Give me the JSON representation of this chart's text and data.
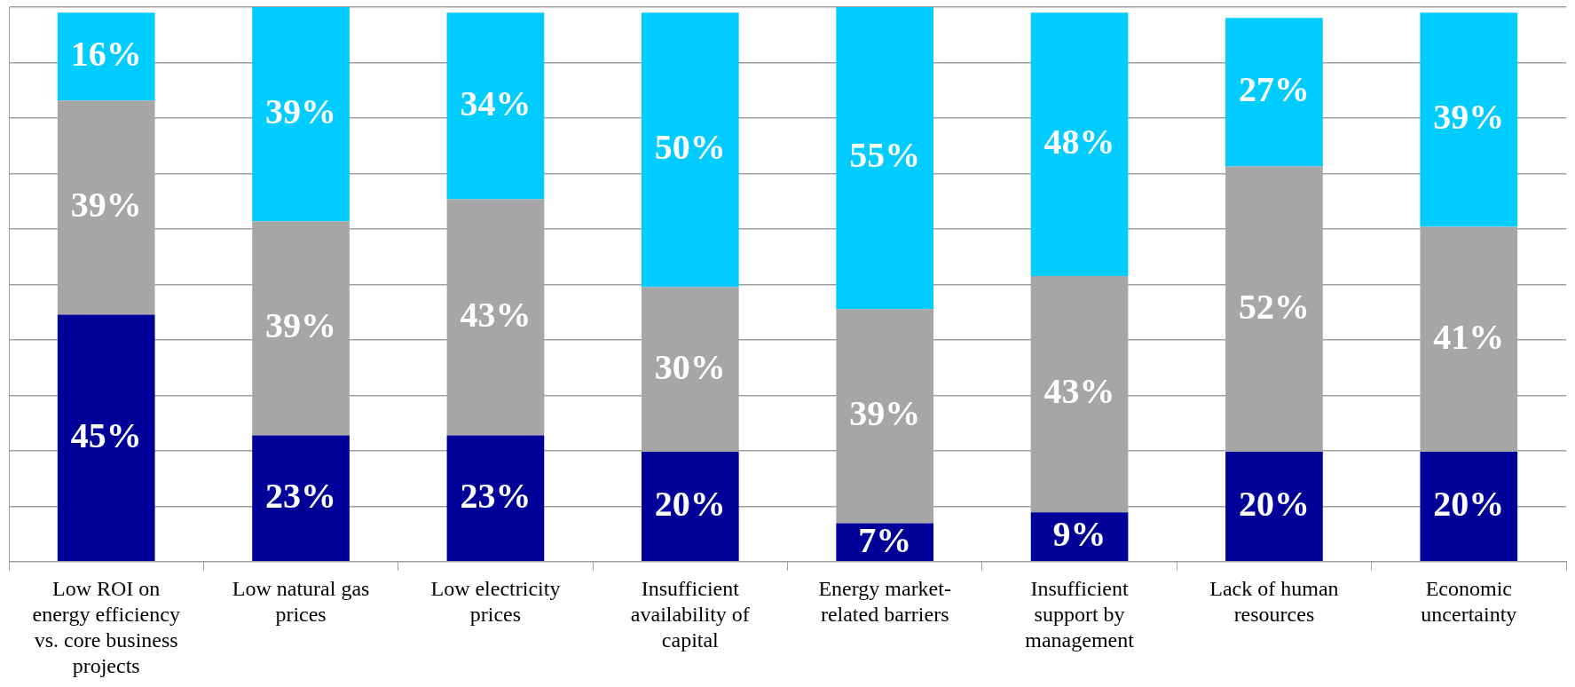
{
  "chart_data": {
    "type": "bar",
    "stacked": true,
    "categories": [
      "Low ROI on energy efficiency vs. core business projects",
      "Low natural gas prices",
      "Low electricity prices",
      "Insufficient availability of capital",
      "Energy market-related barriers",
      "Insufficient support by management",
      "Lack of human resources",
      "Economic uncertainty"
    ],
    "series": [
      {
        "color": "#000099",
        "values": [
          45,
          23,
          23,
          20,
          7,
          9,
          20,
          20
        ],
        "value_labels": [
          "45%",
          "23%",
          "23%",
          "20%",
          "7%",
          "9%",
          "20%",
          "20%"
        ]
      },
      {
        "color": "#a6a6a6",
        "values": [
          39,
          39,
          43,
          30,
          39,
          43,
          52,
          41
        ],
        "value_labels": [
          "39%",
          "39%",
          "43%",
          "30%",
          "39%",
          "43%",
          "52%",
          "41%"
        ]
      },
      {
        "color": "#00ccff",
        "values": [
          16,
          39,
          34,
          50,
          55,
          48,
          27,
          39
        ],
        "value_labels": [
          "16%",
          "39%",
          "34%",
          "50%",
          "55%",
          "48%",
          "27%",
          "39%"
        ]
      }
    ],
    "grid": "y",
    "legend": false,
    "tick_labels": "x"
  }
}
